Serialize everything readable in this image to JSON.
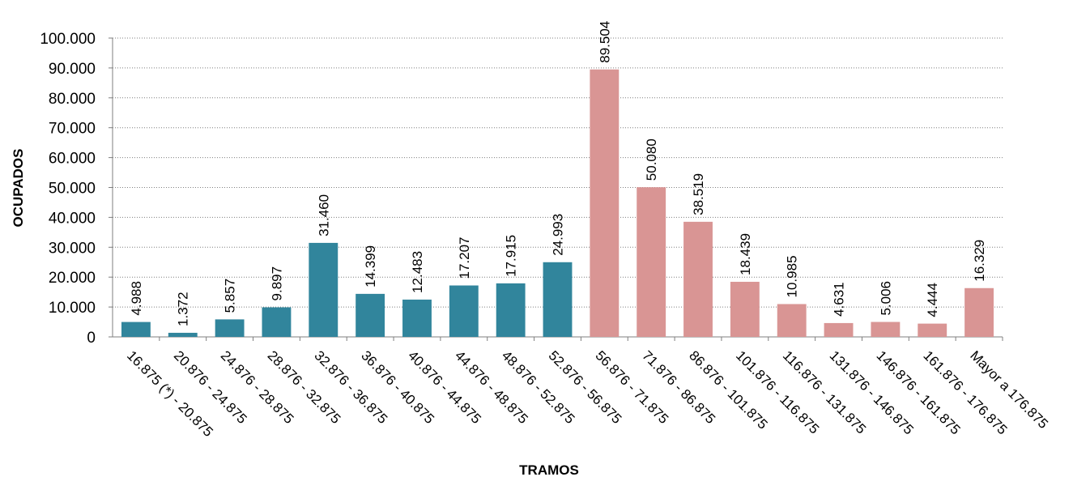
{
  "chart_data": {
    "type": "bar",
    "title": "",
    "xlabel": "TRAMOS",
    "ylabel": "OCUPADOS",
    "ylim": [
      0,
      100000
    ],
    "yticks": [
      0,
      10000,
      20000,
      30000,
      40000,
      50000,
      60000,
      70000,
      80000,
      90000,
      100000
    ],
    "ytick_labels": [
      "0",
      "10.000",
      "20.000",
      "30.000",
      "40.000",
      "50.000",
      "60.000",
      "70.000",
      "80.000",
      "90.000",
      "100.000"
    ],
    "grid": true,
    "legend": "none",
    "categories": [
      "16.875 (*) - 20.875",
      "20.876 - 24.875",
      "24.876 - 28.875",
      "28.876 - 32.875",
      "32.876 - 36.875",
      "36.876 - 40.875",
      "40.876 - 44.875",
      "44.876 - 48.875",
      "48.876 - 52.875",
      "52.876 - 56.875",
      "56.876 - 71.875",
      "71.876 - 86.875",
      "86.876 - 101.875",
      "101.876 - 116.875",
      "116.876 - 131.875",
      "131.876 - 146.875",
      "146.876 - 161.875",
      "161.876 - 176.875",
      "Mayor a 176.875"
    ],
    "values": [
      4988,
      1372,
      5857,
      9897,
      31460,
      14399,
      12483,
      17207,
      17915,
      24993,
      89504,
      50080,
      38519,
      18439,
      10985,
      4631,
      5006,
      4444,
      16329
    ],
    "value_labels": [
      "4.988",
      "1.372",
      "5.857",
      "9.897",
      "31.460",
      "14.399",
      "12.483",
      "17.207",
      "17.915",
      "24.993",
      "89.504",
      "50.080",
      "38.519",
      "18.439",
      "10.985",
      "4.631",
      "5.006",
      "4.444",
      "16.329"
    ],
    "bar_colors": [
      "#31859c",
      "#31859c",
      "#31859c",
      "#31859c",
      "#31859c",
      "#31859c",
      "#31859c",
      "#31859c",
      "#31859c",
      "#31859c",
      "#d99594",
      "#d99594",
      "#d99594",
      "#d99594",
      "#d99594",
      "#d99594",
      "#d99594",
      "#d99594",
      "#d99594"
    ]
  }
}
